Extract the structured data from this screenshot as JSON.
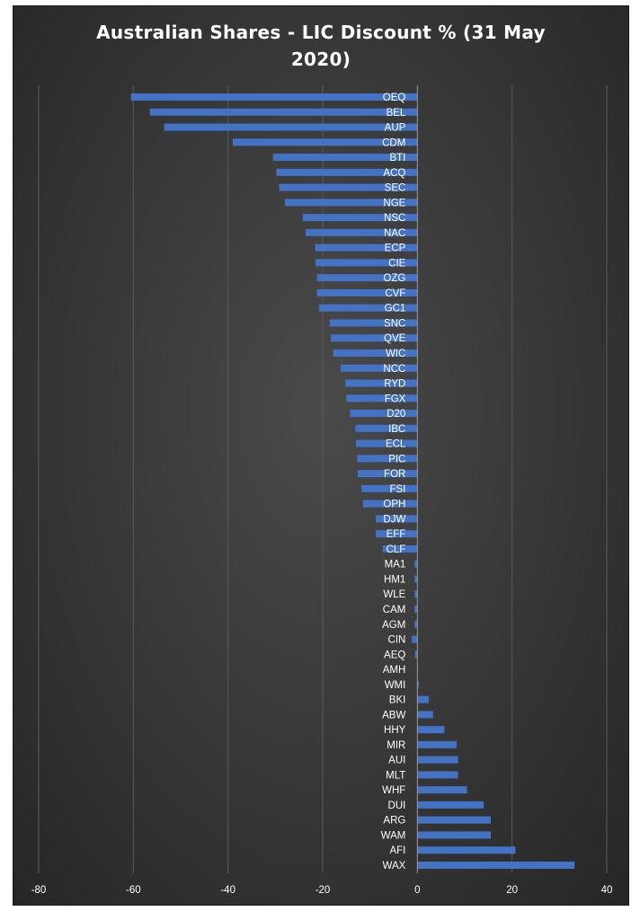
{
  "chart_data": {
    "type": "bar",
    "orientation": "horizontal",
    "title": "Australian Shares - LIC Discount % (31 May 2020)",
    "xlabel": "",
    "ylabel": "",
    "xlim": [
      -80,
      40
    ],
    "x_ticks": [
      -80,
      -60,
      -40,
      -20,
      0,
      20,
      40
    ],
    "grid": "vertical",
    "bar_color": "#4472c4",
    "background": "#3a3a3a",
    "categories": [
      "OEQ",
      "BEL",
      "AUP",
      "CDM",
      "BTI",
      "ACQ",
      "SEC",
      "NGE",
      "NSC",
      "NAC",
      "ECP",
      "CIE",
      "OZG",
      "CVF",
      "GC1",
      "SNC",
      "QVE",
      "WIC",
      "NCC",
      "RYD",
      "FGX",
      "D20",
      "IBC",
      "ECL",
      "PIC",
      "FOR",
      "FSI",
      "OPH",
      "DJW",
      "EFF",
      "CLF",
      "MA1",
      "HM1",
      "WLE",
      "CAM",
      "AGM",
      "CIN",
      "AEQ",
      "AMH",
      "WMI",
      "BKI",
      "ABW",
      "HHY",
      "MIR",
      "AUI",
      "MLT",
      "WHF",
      "DUI",
      "ARG",
      "WAM",
      "AFI",
      "WAX"
    ],
    "values": [
      -60.5,
      -56.5,
      -53.5,
      -39,
      -30.5,
      -29.8,
      -29.2,
      -28,
      -24.2,
      -23.6,
      -21.6,
      -21.5,
      -21.2,
      -21.2,
      -20.8,
      -18.5,
      -18.3,
      -17.8,
      -16.2,
      -15.2,
      -15,
      -14.2,
      -13.1,
      -13,
      -12.7,
      -12.6,
      -11.8,
      -11.5,
      -8.8,
      -8.8,
      -7.3,
      -0.6,
      -0.6,
      -0.6,
      -0.6,
      -0.6,
      -1.2,
      -0.5,
      0,
      0.3,
      2.4,
      3.3,
      5.7,
      8.3,
      8.6,
      8.6,
      10.5,
      14,
      15.5,
      15.5,
      20.7,
      33.2
    ]
  }
}
